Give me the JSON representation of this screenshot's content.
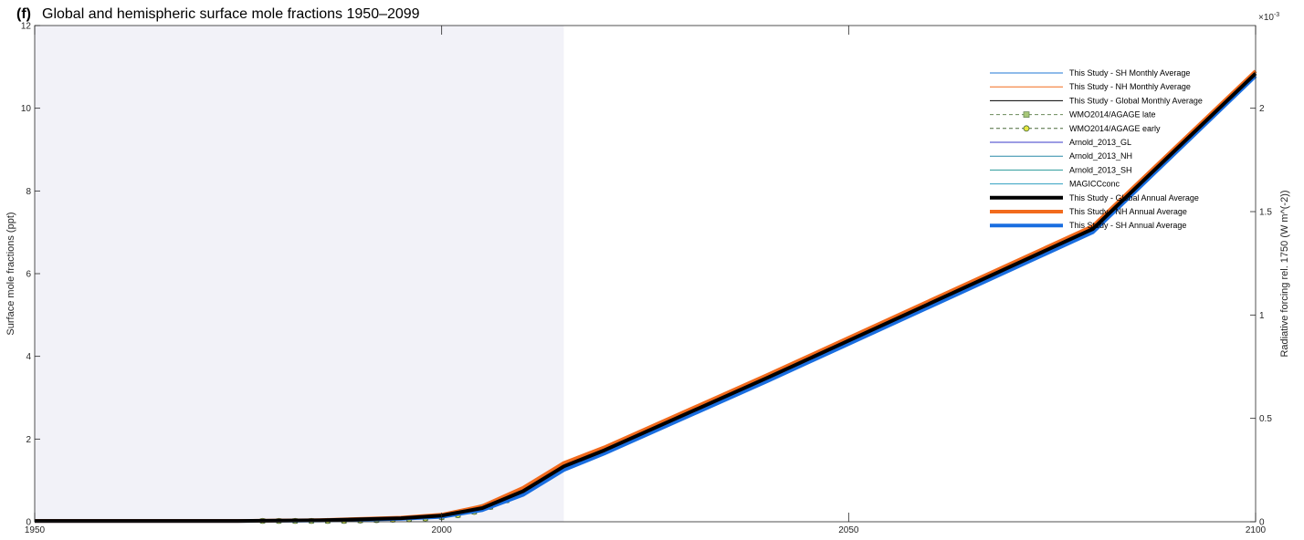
{
  "chart_data": {
    "type": "line",
    "title_tag": "(f)",
    "title": "Global and hemispheric surface mole fractions 1950–2099",
    "xlabel": "",
    "ylabel": "Surface mole fractions (ppt)",
    "ylabel_right": "Radiative forcing rel. 1750 (W m^(-2))",
    "right_exponent": "×10",
    "right_exponent_power": "-3",
    "xlim": [
      1950,
      2100
    ],
    "ylim": [
      0,
      12
    ],
    "ylim_right": [
      0,
      0.0024
    ],
    "x_ticks": [
      1950,
      2000,
      2050,
      2100
    ],
    "y_ticks": [
      0,
      2,
      4,
      6,
      8,
      10,
      12
    ],
    "y_ticks_right": [
      0,
      0.5,
      1,
      1.5,
      2
    ],
    "shaded_region": [
      1950,
      2015
    ],
    "grid": false,
    "legend_position": "top-right",
    "series": [
      {
        "name": "This Study - SH Monthly Average",
        "style": "thin",
        "color": "#1f77d4",
        "x": [
          1950,
          1975,
          1985,
          1995,
          2000,
          2005,
          2010,
          2015,
          2020,
          2040,
          2060,
          2080,
          2100
        ],
        "values": [
          0.02,
          0.02,
          0.03,
          0.07,
          0.12,
          0.28,
          0.65,
          1.25,
          1.65,
          3.4,
          5.2,
          7.0,
          10.78
        ]
      },
      {
        "name": "This Study - NH Monthly Average",
        "style": "thin",
        "color": "#f26b1d",
        "x": [
          1950,
          1975,
          1985,
          1995,
          2000,
          2005,
          2010,
          2015,
          2020,
          2040,
          2060,
          2080,
          2100
        ],
        "values": [
          0.02,
          0.02,
          0.04,
          0.1,
          0.17,
          0.38,
          0.82,
          1.42,
          1.8,
          3.55,
          5.35,
          7.15,
          10.9
        ]
      },
      {
        "name": "This Study - Global Monthly Average",
        "style": "thin",
        "color": "#000000",
        "x": [
          1950,
          1975,
          1985,
          1995,
          2000,
          2005,
          2010,
          2015,
          2020,
          2040,
          2060,
          2080,
          2100
        ],
        "values": [
          0.02,
          0.02,
          0.035,
          0.085,
          0.15,
          0.33,
          0.74,
          1.34,
          1.73,
          3.48,
          5.28,
          7.08,
          10.84
        ]
      },
      {
        "name": "WMO2014/AGAGE late",
        "style": "dashed-square",
        "color": "#6a8a5a",
        "marker_fill": "#a8c878",
        "x": [
          1978,
          1980,
          1982,
          1984,
          1986,
          1988,
          1990,
          1992,
          1994,
          1996,
          1998,
          2000,
          2002,
          2004,
          2006,
          2008,
          2010,
          2012,
          2014
        ],
        "values": [
          0.02,
          0.02,
          0.02,
          0.02,
          0.02,
          0.02,
          0.03,
          0.04,
          0.05,
          0.06,
          0.08,
          0.11,
          0.16,
          0.24,
          0.36,
          0.52,
          0.72,
          0.95,
          1.2
        ]
      },
      {
        "name": "WMO2014/AGAGE early",
        "style": "dashed-circle",
        "color": "#4a6a3a",
        "marker_fill": "#e8e840",
        "x": [
          1978,
          1980,
          1982,
          1984,
          1986,
          1988,
          1990,
          1992,
          1994,
          1996,
          1998,
          2000,
          2002,
          2004,
          2006,
          2008,
          2010,
          2012,
          2014
        ],
        "values": [
          0.02,
          0.02,
          0.02,
          0.02,
          0.02,
          0.02,
          0.03,
          0.04,
          0.05,
          0.06,
          0.08,
          0.11,
          0.16,
          0.24,
          0.36,
          0.52,
          0.72,
          0.95,
          1.2
        ]
      },
      {
        "name": "Arnold_2013_GL",
        "style": "thin",
        "color": "#3a3ac8",
        "x": [
          1978,
          1990,
          2000,
          2005,
          2008
        ],
        "values": [
          0.02,
          0.03,
          0.12,
          0.3,
          0.5
        ]
      },
      {
        "name": "Arnold_2013_NH",
        "style": "thin",
        "color": "#2a8aa8",
        "x": [
          1978,
          1990,
          2000,
          2005,
          2008
        ],
        "values": [
          0.02,
          0.03,
          0.13,
          0.32,
          0.53
        ]
      },
      {
        "name": "Arnold_2013_SH",
        "style": "thin",
        "color": "#2a9a9a",
        "x": [
          1978,
          1990,
          2000,
          2005,
          2008
        ],
        "values": [
          0.02,
          0.03,
          0.11,
          0.28,
          0.47
        ]
      },
      {
        "name": "MAGICCconc",
        "style": "thin",
        "color": "#30a0c0",
        "x": [
          1950,
          1975,
          1990,
          2000,
          2010,
          2015
        ],
        "values": [
          0.03,
          0.03,
          0.05,
          0.14,
          0.7,
          1.3
        ]
      },
      {
        "name": "This Study - Global Annual Average",
        "style": "thick",
        "color": "#000000",
        "x": [
          1950,
          1975,
          1985,
          1995,
          2000,
          2005,
          2010,
          2015,
          2020,
          2040,
          2060,
          2080,
          2100
        ],
        "values": [
          0.02,
          0.02,
          0.035,
          0.085,
          0.15,
          0.33,
          0.74,
          1.34,
          1.73,
          3.48,
          5.28,
          7.08,
          10.84
        ]
      },
      {
        "name": "This Study - NH Annual Average",
        "style": "thick",
        "color": "#f26b1d",
        "x": [
          1950,
          1975,
          1985,
          1995,
          2000,
          2005,
          2010,
          2015,
          2020,
          2040,
          2060,
          2080,
          2100
        ],
        "values": [
          0.02,
          0.02,
          0.04,
          0.1,
          0.17,
          0.38,
          0.82,
          1.42,
          1.8,
          3.55,
          5.35,
          7.15,
          10.9
        ]
      },
      {
        "name": "This Study - SH Annual Average",
        "style": "thick",
        "color": "#1a6ee0",
        "x": [
          1950,
          1975,
          1985,
          1995,
          2000,
          2005,
          2010,
          2015,
          2020,
          2040,
          2060,
          2080,
          2100
        ],
        "values": [
          0.02,
          0.02,
          0.03,
          0.07,
          0.12,
          0.28,
          0.65,
          1.25,
          1.65,
          3.4,
          5.2,
          7.0,
          10.78
        ]
      }
    ]
  }
}
